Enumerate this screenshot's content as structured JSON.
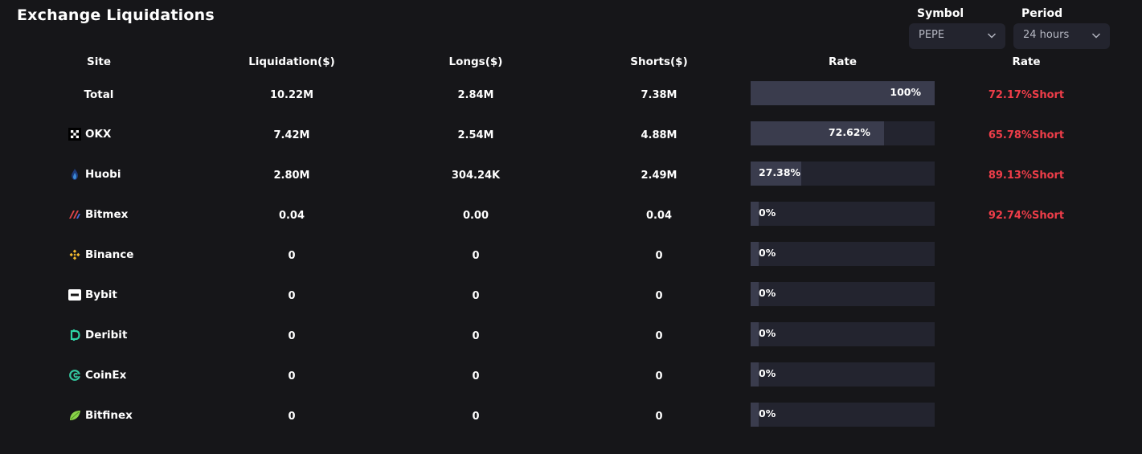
{
  "title": "Exchange Liquidations",
  "filters": {
    "symbol": {
      "label": "Symbol",
      "value": "PEPE"
    },
    "period": {
      "label": "Period",
      "value": "24 hours"
    }
  },
  "columns": {
    "site": "Site",
    "liquidation": "Liquidation($)",
    "longs": "Longs($)",
    "shorts": "Shorts($)",
    "rate": "Rate",
    "rate2": "Rate"
  },
  "colors": {
    "background": "#161619",
    "bar_track": "#23242f",
    "bar_fill": "#3a3c4d",
    "short_rate": "#ef3d49"
  },
  "rows": [
    {
      "site": "Total",
      "icon": "",
      "liquidation": "10.22M",
      "longs": "2.84M",
      "shorts": "7.38M",
      "rate": "100%",
      "rate_value": 100,
      "rate2": "72.17%Short"
    },
    {
      "site": "OKX",
      "icon": "okx-icon",
      "liquidation": "7.42M",
      "longs": "2.54M",
      "shorts": "4.88M",
      "rate": "72.62%",
      "rate_value": 72.62,
      "rate2": "65.78%Short"
    },
    {
      "site": "Huobi",
      "icon": "huobi-icon",
      "liquidation": "2.80M",
      "longs": "304.24K",
      "shorts": "2.49M",
      "rate": "27.38%",
      "rate_value": 27.38,
      "rate2": "89.13%Short"
    },
    {
      "site": "Bitmex",
      "icon": "bitmex-icon",
      "liquidation": "0.04",
      "longs": "0.00",
      "shorts": "0.04",
      "rate": "0%",
      "rate_value": 0,
      "rate2": "92.74%Short"
    },
    {
      "site": "Binance",
      "icon": "binance-icon",
      "liquidation": "0",
      "longs": "0",
      "shorts": "0",
      "rate": "0%",
      "rate_value": 0,
      "rate2": ""
    },
    {
      "site": "Bybit",
      "icon": "bybit-icon",
      "liquidation": "0",
      "longs": "0",
      "shorts": "0",
      "rate": "0%",
      "rate_value": 0,
      "rate2": ""
    },
    {
      "site": "Deribit",
      "icon": "deribit-icon",
      "liquidation": "0",
      "longs": "0",
      "shorts": "0",
      "rate": "0%",
      "rate_value": 0,
      "rate2": ""
    },
    {
      "site": "CoinEx",
      "icon": "coinex-icon",
      "liquidation": "0",
      "longs": "0",
      "shorts": "0",
      "rate": "0%",
      "rate_value": 0,
      "rate2": ""
    },
    {
      "site": "Bitfinex",
      "icon": "bitfinex-icon",
      "liquidation": "0",
      "longs": "0",
      "shorts": "0",
      "rate": "0%",
      "rate_value": 0,
      "rate2": ""
    }
  ]
}
